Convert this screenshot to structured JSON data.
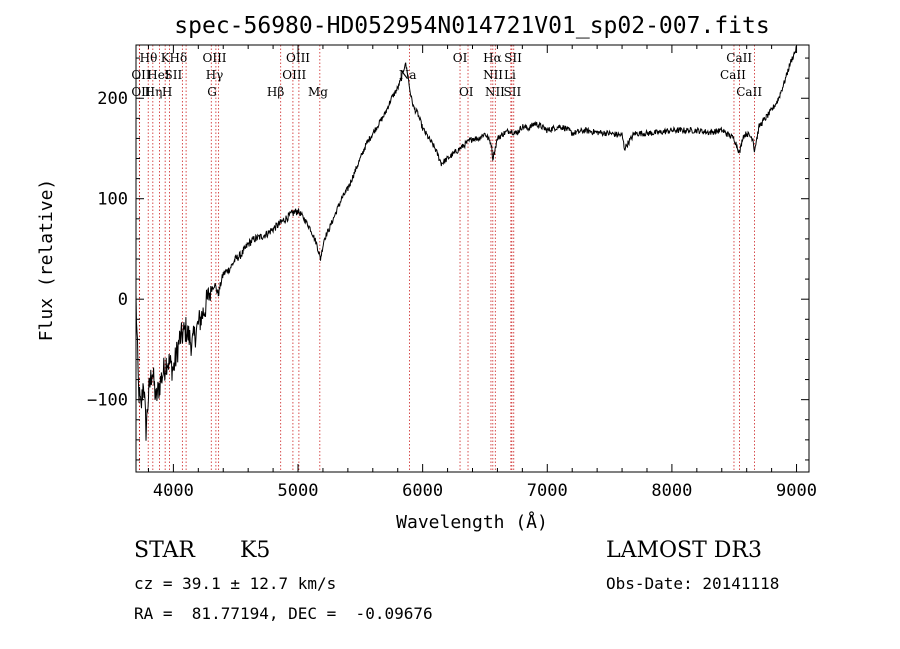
{
  "chart_data": {
    "type": "line",
    "title": "spec-56980-HD052954N014721V01_sp02-007.fits",
    "xlabel": "Wavelength (Å)",
    "ylabel": "Flux (relative)",
    "xlim": [
      3700,
      9100
    ],
    "ylim": [
      -172,
      253
    ],
    "x_ticks": [
      4000,
      5000,
      6000,
      7000,
      8000,
      9000
    ],
    "y_ticks": [
      -100,
      0,
      100,
      200
    ],
    "grid": false,
    "series": [
      {
        "x": [
          3700,
          3720,
          3740,
          3760,
          3780,
          3800,
          3830,
          3860,
          3900,
          3950,
          4000,
          4050,
          4100,
          4150,
          4200,
          4250,
          4300,
          4330,
          4360,
          4400,
          4450,
          4500,
          4550,
          4600,
          4650,
          4700,
          4750,
          4800,
          4850,
          4900,
          4950,
          5000,
          5050,
          5100,
          5150,
          5180,
          5210,
          5250,
          5300,
          5350,
          5400,
          5450,
          5500,
          5550,
          5600,
          5650,
          5700,
          5750,
          5800,
          5830,
          5860,
          5880,
          5895,
          5910,
          5930,
          5960,
          6000,
          6050,
          6100,
          6150,
          6200,
          6250,
          6300,
          6350,
          6400,
          6450,
          6500,
          6550,
          6563,
          6600,
          6650,
          6700,
          6750,
          6800,
          6850,
          6900,
          6950,
          7000,
          7050,
          7100,
          7150,
          7200,
          7300,
          7400,
          7500,
          7600,
          7620,
          7700,
          7800,
          7900,
          8000,
          8100,
          8200,
          8300,
          8400,
          8498,
          8530,
          8542,
          8570,
          8600,
          8650,
          8662,
          8700,
          8750,
          8800,
          8850,
          8900,
          8950,
          9000
        ],
        "y": [
          0,
          -90,
          -110,
          -80,
          -130,
          -95,
          -70,
          -100,
          -80,
          -60,
          -70,
          -40,
          -30,
          -45,
          -25,
          -10,
          10,
          15,
          5,
          25,
          30,
          40,
          45,
          55,
          60,
          62,
          65,
          70,
          75,
          80,
          85,
          88,
          80,
          70,
          55,
          40,
          60,
          70,
          85,
          100,
          110,
          125,
          140,
          155,
          165,
          175,
          185,
          200,
          210,
          220,
          235,
          225,
          210,
          200,
          190,
          185,
          170,
          160,
          150,
          135,
          140,
          145,
          150,
          155,
          160,
          160,
          165,
          155,
          140,
          160,
          165,
          168,
          165,
          172,
          170,
          175,
          172,
          168,
          170,
          172,
          170,
          165,
          168,
          166,
          165,
          163,
          150,
          165,
          165,
          166,
          168,
          168,
          168,
          166,
          168,
          160,
          150,
          145,
          162,
          165,
          160,
          148,
          172,
          180,
          188,
          198,
          215,
          235,
          250
        ]
      }
    ],
    "lines": [
      {
        "name": "Hθ",
        "wl": 3798
      },
      {
        "name": "OII",
        "wl": 3727
      },
      {
        "name": "OII",
        "wl": 3729
      },
      {
        "name": "Hη",
        "wl": 3835
      },
      {
        "name": "HeI",
        "wl": 3889
      },
      {
        "name": "K",
        "wl": 3934
      },
      {
        "name": "H",
        "wl": 3969
      },
      {
        "name": "SII",
        "wl": 4072
      },
      {
        "name": "Hδ",
        "wl": 4102
      },
      {
        "name": "G",
        "wl": 4304
      },
      {
        "name": "Hγ",
        "wl": 4341
      },
      {
        "name": "OIII",
        "wl": 4363
      },
      {
        "name": "Hβ",
        "wl": 4861
      },
      {
        "name": "OIII",
        "wl": 4959
      },
      {
        "name": "OIII",
        "wl": 5007
      },
      {
        "name": "Mg",
        "wl": 5175
      },
      {
        "name": "Na",
        "wl": 5894
      },
      {
        "name": "OI",
        "wl": 6300
      },
      {
        "name": "OI",
        "wl": 6364
      },
      {
        "name": "NII",
        "wl": 6548
      },
      {
        "name": "Hα",
        "wl": 6563
      },
      {
        "name": "NII",
        "wl": 6583
      },
      {
        "name": "Li",
        "wl": 6708
      },
      {
        "name": "SII",
        "wl": 6716
      },
      {
        "name": "SII",
        "wl": 6731
      },
      {
        "name": "CaII",
        "wl": 8498
      },
      {
        "name": "CaII",
        "wl": 8542
      },
      {
        "name": "CaII",
        "wl": 8662
      }
    ],
    "line_labels": [
      {
        "text": "Hθ",
        "wl": 3800,
        "row": 1
      },
      {
        "text": "K",
        "wl": 3935,
        "row": 1
      },
      {
        "text": "Hδ",
        "wl": 4040,
        "row": 1
      },
      {
        "text": "OIII",
        "wl": 4330,
        "row": 1
      },
      {
        "text": "OIII",
        "wl": 5000,
        "row": 1
      },
      {
        "text": "OI",
        "wl": 6300,
        "row": 1
      },
      {
        "text": "Hα",
        "wl": 6560,
        "row": 1
      },
      {
        "text": "SII",
        "wl": 6725,
        "row": 1
      },
      {
        "text": "CaII",
        "wl": 8540,
        "row": 1
      },
      {
        "text": "OII",
        "wl": 3740,
        "row": 2
      },
      {
        "text": "HeI",
        "wl": 3880,
        "row": 2
      },
      {
        "text": "SII",
        "wl": 4000,
        "row": 2
      },
      {
        "text": "Hγ",
        "wl": 4330,
        "row": 2
      },
      {
        "text": "OIII",
        "wl": 4970,
        "row": 2
      },
      {
        "text": "Na",
        "wl": 5880,
        "row": 2
      },
      {
        "text": "NII",
        "wl": 6565,
        "row": 2
      },
      {
        "text": "Li",
        "wl": 6700,
        "row": 2
      },
      {
        "text": "CaII",
        "wl": 8490,
        "row": 2
      },
      {
        "text": "OII",
        "wl": 3740,
        "row": 3
      },
      {
        "text": "Hη",
        "wl": 3840,
        "row": 3
      },
      {
        "text": "H",
        "wl": 3950,
        "row": 3
      },
      {
        "text": "G",
        "wl": 4310,
        "row": 3
      },
      {
        "text": "Hβ",
        "wl": 4820,
        "row": 3
      },
      {
        "text": "Mg",
        "wl": 5160,
        "row": 3
      },
      {
        "text": "OI",
        "wl": 6350,
        "row": 3
      },
      {
        "text": "NII",
        "wl": 6580,
        "row": 3
      },
      {
        "text": "SII",
        "wl": 6720,
        "row": 3
      },
      {
        "text": "CaII",
        "wl": 8620,
        "row": 3
      }
    ]
  },
  "info": {
    "object": "STAR",
    "subclass": "K5",
    "survey": "LAMOST DR3",
    "cz": "cz = 39.1 ± 12.7 km/s",
    "obs_date": "Obs-Date: 20141118",
    "coords": "RA =  81.77194, DEC =  -0.09676"
  },
  "colors": {
    "line_markers": "#cc2222",
    "spectrum": "#000000"
  }
}
